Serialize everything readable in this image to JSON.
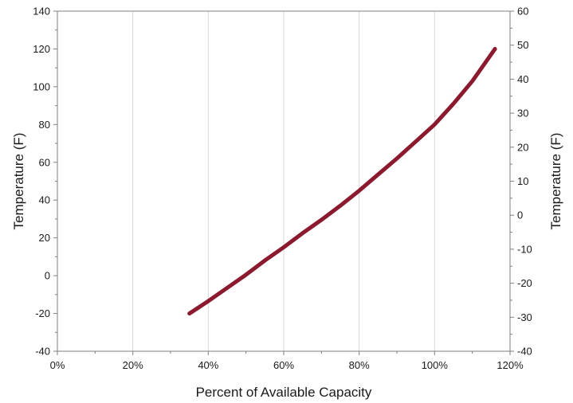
{
  "chart_data": {
    "type": "line",
    "title": "",
    "xlabel": "Percent of Available Capacity",
    "ylabel": "Temperature (F)",
    "y2label": "Temperature (F)",
    "xlim": [
      0,
      120
    ],
    "ylim": [
      -40,
      140
    ],
    "y2lim": [
      -40,
      60
    ],
    "x_ticks": [
      "0%",
      "20%",
      "40%",
      "60%",
      "80%",
      "100%",
      "120%"
    ],
    "y_ticks": [
      "-40",
      "-20",
      "0",
      "20",
      "40",
      "60",
      "80",
      "100",
      "120",
      "140"
    ],
    "y2_ticks": [
      "-40",
      "-30",
      "-20",
      "-10",
      "0",
      "10",
      "20",
      "30",
      "40",
      "50",
      "60"
    ],
    "grid": "vertical",
    "legend": "none",
    "series": [
      {
        "color": "#8b1a2e",
        "x": [
          35,
          40,
          45,
          50,
          55,
          60,
          65,
          70,
          75,
          80,
          85,
          90,
          95,
          100,
          105,
          110,
          116
        ],
        "y": [
          -20,
          -13.5,
          -6.5,
          0.5,
          8,
          15,
          22.5,
          29.5,
          37,
          45,
          53.5,
          62,
          71,
          80,
          91,
          103,
          120
        ]
      }
    ]
  }
}
